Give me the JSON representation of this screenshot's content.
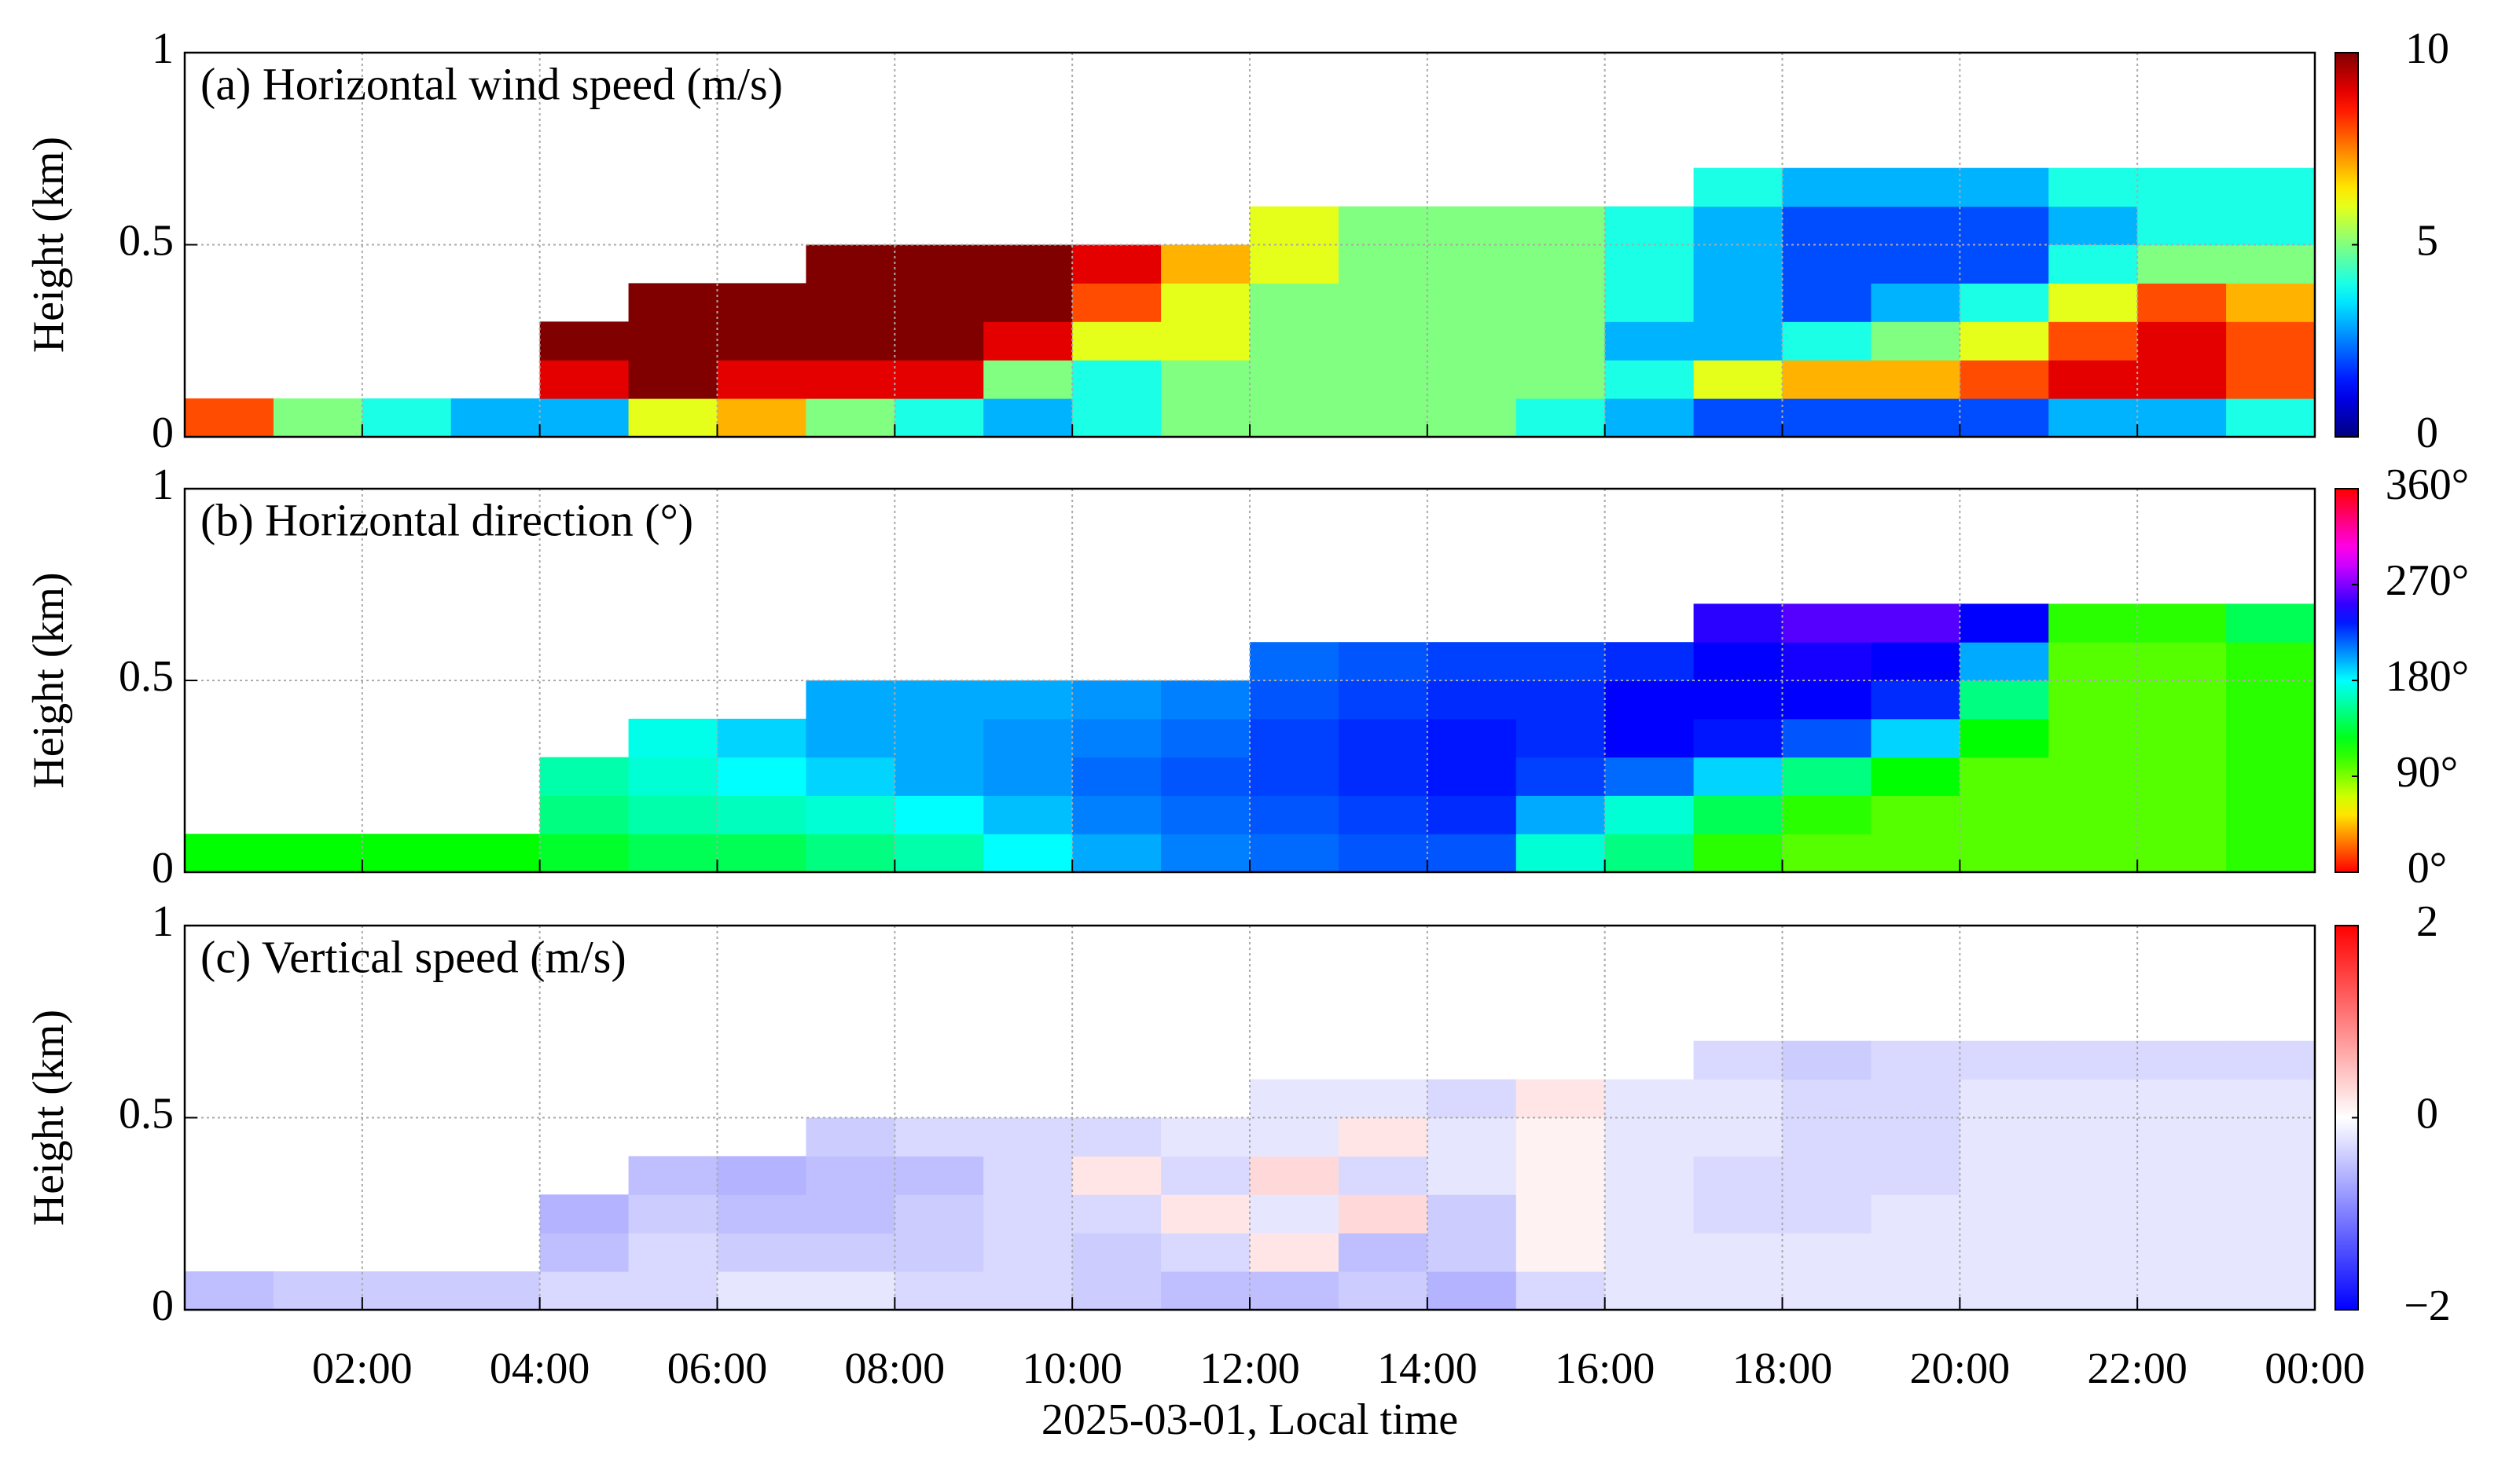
{
  "chart_data": {
    "type": "heatmap-stack",
    "xlabel": "2025-03-01, Local time",
    "xlim": [
      0,
      24
    ],
    "xticks": [
      {
        "value": 2,
        "label": "02:00"
      },
      {
        "value": 4,
        "label": "04:00"
      },
      {
        "value": 6,
        "label": "06:00"
      },
      {
        "value": 8,
        "label": "08:00"
      },
      {
        "value": 10,
        "label": "10:00"
      },
      {
        "value": 12,
        "label": "12:00"
      },
      {
        "value": 14,
        "label": "14:00"
      },
      {
        "value": 16,
        "label": "16:00"
      },
      {
        "value": 18,
        "label": "18:00"
      },
      {
        "value": 20,
        "label": "20:00"
      },
      {
        "value": 22,
        "label": "22:00"
      },
      {
        "value": 24,
        "label": "00:00"
      }
    ],
    "grid": true,
    "x_bins": [
      0,
      1,
      2,
      3,
      4,
      5,
      6,
      7,
      8,
      9,
      10,
      11,
      12,
      13,
      14,
      15,
      16,
      17,
      18,
      19,
      20,
      21,
      22,
      23,
      24
    ],
    "y_bins": [
      0,
      0.1,
      0.2,
      0.3,
      0.4,
      0.5,
      0.6,
      0.7
    ],
    "panels": [
      {
        "type": "heatmap",
        "title": "(a) Horizontal wind speed (m/s)",
        "ylabel": "Height (km)",
        "ylim": [
          0,
          1
        ],
        "yticks": [
          0,
          0.5,
          1
        ],
        "colormap": "jet",
        "clim": [
          0,
          10
        ],
        "cticks": [
          0,
          5,
          10
        ],
        "z": [
          [
            8,
            5,
            4,
            3,
            3,
            6,
            7,
            5,
            4,
            3,
            4,
            5,
            5,
            5,
            5,
            4,
            3,
            2,
            2,
            2,
            2,
            3,
            3,
            4
          ],
          [
            null,
            null,
            null,
            null,
            9,
            10,
            9,
            9,
            9,
            5,
            4,
            5,
            5,
            5,
            5,
            5,
            4,
            6,
            7,
            7,
            8,
            9,
            9,
            8
          ],
          [
            null,
            null,
            null,
            null,
            10,
            10,
            10,
            10,
            10,
            9,
            6,
            6,
            5,
            5,
            5,
            5,
            3,
            3,
            4,
            5,
            6,
            8,
            9,
            8
          ],
          [
            null,
            null,
            null,
            null,
            null,
            10,
            10,
            10,
            10,
            10,
            8,
            6,
            5,
            5,
            5,
            5,
            4,
            3,
            2,
            3,
            4,
            6,
            8,
            7
          ],
          [
            null,
            null,
            null,
            null,
            null,
            null,
            null,
            10,
            10,
            10,
            9,
            7,
            6,
            5,
            5,
            5,
            4,
            3,
            2,
            2,
            2,
            4,
            5,
            5
          ],
          [
            null,
            null,
            null,
            null,
            null,
            null,
            null,
            null,
            null,
            null,
            null,
            null,
            6,
            5,
            5,
            5,
            4,
            3,
            2,
            2,
            2,
            3,
            4,
            4
          ],
          [
            null,
            null,
            null,
            null,
            null,
            null,
            null,
            null,
            null,
            null,
            null,
            null,
            null,
            null,
            null,
            null,
            null,
            4,
            3,
            3,
            3,
            4,
            4,
            4
          ]
        ]
      },
      {
        "type": "heatmap",
        "title": "(b) Horizontal direction (°)",
        "ylabel": "Height (km)",
        "ylim": [
          0,
          1
        ],
        "yticks": [
          0,
          0.5,
          1
        ],
        "colormap": "hsv",
        "clim": [
          0,
          360
        ],
        "cticks": [
          {
            "value": 0,
            "label": "0°"
          },
          {
            "value": 90,
            "label": "90°"
          },
          {
            "value": 180,
            "label": "180°"
          },
          {
            "value": 270,
            "label": "270°"
          },
          {
            "value": 360,
            "label": "360°"
          }
        ],
        "z": [
          [
            120,
            120,
            120,
            120,
            130,
            140,
            140,
            150,
            160,
            180,
            200,
            210,
            215,
            220,
            220,
            170,
            150,
            110,
            100,
            100,
            100,
            100,
            100,
            110
          ],
          [
            null,
            null,
            null,
            null,
            150,
            160,
            165,
            170,
            180,
            195,
            210,
            215,
            220,
            225,
            230,
            200,
            170,
            140,
            110,
            100,
            100,
            100,
            100,
            110
          ],
          [
            null,
            null,
            null,
            null,
            160,
            170,
            180,
            190,
            200,
            205,
            215,
            220,
            225,
            230,
            235,
            225,
            215,
            190,
            150,
            120,
            100,
            100,
            100,
            110
          ],
          [
            null,
            null,
            null,
            null,
            null,
            175,
            190,
            200,
            200,
            205,
            210,
            215,
            225,
            230,
            235,
            230,
            240,
            235,
            220,
            190,
            120,
            100,
            100,
            110
          ],
          [
            null,
            null,
            null,
            null,
            null,
            null,
            null,
            200,
            200,
            200,
            205,
            210,
            220,
            225,
            230,
            230,
            240,
            240,
            240,
            230,
            150,
            100,
            100,
            110
          ],
          [
            null,
            null,
            null,
            null,
            null,
            null,
            null,
            null,
            null,
            null,
            null,
            null,
            215,
            220,
            225,
            225,
            230,
            240,
            245,
            240,
            200,
            100,
            100,
            110
          ],
          [
            null,
            null,
            null,
            null,
            null,
            null,
            null,
            null,
            null,
            null,
            null,
            null,
            null,
            null,
            null,
            null,
            null,
            250,
            260,
            260,
            240,
            110,
            110,
            140
          ]
        ]
      },
      {
        "type": "heatmap",
        "title": "(c) Vertical speed (m/s)",
        "ylabel": "Height (km)",
        "ylim": [
          0,
          1
        ],
        "yticks": [
          0,
          0.5,
          1
        ],
        "colormap": "bwr",
        "clim": [
          -2,
          2
        ],
        "cticks": [
          {
            "value": -2,
            "label": "−2"
          },
          0,
          2
        ],
        "z": [
          [
            -0.5,
            -0.4,
            -0.4,
            -0.4,
            -0.3,
            -0.3,
            -0.2,
            -0.2,
            -0.3,
            -0.3,
            -0.4,
            -0.5,
            -0.5,
            -0.4,
            -0.6,
            -0.3,
            -0.2,
            -0.2,
            -0.2,
            -0.2,
            -0.2,
            -0.2,
            -0.2,
            -0.2
          ],
          [
            null,
            null,
            null,
            null,
            -0.5,
            -0.3,
            -0.4,
            -0.4,
            -0.4,
            -0.3,
            -0.4,
            -0.3,
            0.2,
            -0.5,
            -0.4,
            0.1,
            -0.2,
            -0.2,
            -0.2,
            -0.2,
            -0.2,
            -0.2,
            -0.2,
            -0.2
          ],
          [
            null,
            null,
            null,
            null,
            -0.6,
            -0.4,
            -0.5,
            -0.5,
            -0.4,
            -0.3,
            -0.3,
            0.2,
            -0.2,
            0.3,
            -0.4,
            0.1,
            -0.2,
            -0.3,
            -0.3,
            -0.2,
            -0.2,
            -0.2,
            -0.2,
            -0.2
          ],
          [
            null,
            null,
            null,
            null,
            null,
            -0.5,
            -0.6,
            -0.5,
            -0.5,
            -0.3,
            0.2,
            -0.3,
            0.3,
            -0.3,
            -0.2,
            0.1,
            -0.2,
            -0.3,
            -0.3,
            -0.3,
            -0.2,
            -0.2,
            -0.2,
            -0.2
          ],
          [
            null,
            null,
            null,
            null,
            null,
            null,
            null,
            -0.4,
            -0.3,
            -0.3,
            -0.3,
            -0.2,
            -0.2,
            0.2,
            -0.2,
            0.1,
            -0.2,
            -0.2,
            -0.3,
            -0.3,
            -0.2,
            -0.2,
            -0.2,
            -0.2
          ],
          [
            null,
            null,
            null,
            null,
            null,
            null,
            null,
            null,
            null,
            null,
            null,
            null,
            -0.2,
            -0.2,
            -0.3,
            0.2,
            -0.2,
            -0.2,
            -0.3,
            -0.3,
            -0.2,
            -0.2,
            -0.2,
            -0.2
          ],
          [
            null,
            null,
            null,
            null,
            null,
            null,
            null,
            null,
            null,
            null,
            null,
            null,
            null,
            null,
            null,
            null,
            null,
            -0.3,
            -0.4,
            -0.3,
            -0.3,
            -0.3,
            -0.3,
            -0.3
          ]
        ]
      }
    ]
  }
}
